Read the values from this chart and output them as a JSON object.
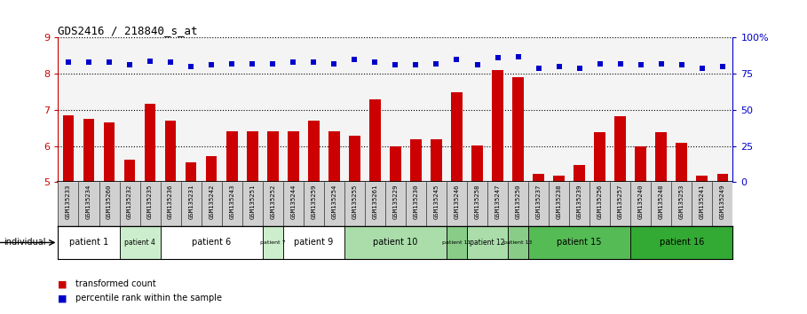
{
  "title": "GDS2416 / 218840_s_at",
  "samples": [
    "GSM135233",
    "GSM135234",
    "GSM135260",
    "GSM135232",
    "GSM135235",
    "GSM135236",
    "GSM135231",
    "GSM135242",
    "GSM135243",
    "GSM135251",
    "GSM135252",
    "GSM135244",
    "GSM135259",
    "GSM135254",
    "GSM135255",
    "GSM135261",
    "GSM135229",
    "GSM135230",
    "GSM135245",
    "GSM135246",
    "GSM135258",
    "GSM135247",
    "GSM135250",
    "GSM135237",
    "GSM135238",
    "GSM135239",
    "GSM135256",
    "GSM135257",
    "GSM135240",
    "GSM135248",
    "GSM135253",
    "GSM135241",
    "GSM135249"
  ],
  "bar_values": [
    6.85,
    6.75,
    6.65,
    5.62,
    7.18,
    6.7,
    5.55,
    5.72,
    6.42,
    6.42,
    6.42,
    6.42,
    6.7,
    6.42,
    6.28,
    7.3,
    5.98,
    6.18,
    6.18,
    7.5,
    6.02,
    8.1,
    7.9,
    5.22,
    5.18,
    5.48,
    6.38,
    6.82,
    6.0,
    6.38,
    6.08,
    5.18,
    5.22
  ],
  "percentile_values": [
    83,
    83,
    83,
    81,
    84,
    83,
    80,
    81,
    82,
    82,
    82,
    83,
    83,
    82,
    85,
    83,
    81,
    81,
    82,
    85,
    81,
    86,
    87,
    79,
    80,
    79,
    82,
    82,
    81,
    82,
    81,
    79,
    80
  ],
  "patient_groups": [
    {
      "label": "patient 1",
      "start": 0,
      "end": 2,
      "color": "#ffffff"
    },
    {
      "label": "patient 4",
      "start": 3,
      "end": 4,
      "color": "#cceecc"
    },
    {
      "label": "patient 6",
      "start": 5,
      "end": 9,
      "color": "#ffffff"
    },
    {
      "label": "patient 7",
      "start": 10,
      "end": 10,
      "color": "#cceecc"
    },
    {
      "label": "patient 9",
      "start": 11,
      "end": 13,
      "color": "#ffffff"
    },
    {
      "label": "patient 10",
      "start": 14,
      "end": 18,
      "color": "#aaddaa"
    },
    {
      "label": "patient 11",
      "start": 19,
      "end": 19,
      "color": "#88cc88"
    },
    {
      "label": "patient 12",
      "start": 20,
      "end": 21,
      "color": "#aaddaa"
    },
    {
      "label": "patient 13",
      "start": 22,
      "end": 22,
      "color": "#88cc88"
    },
    {
      "label": "patient 15",
      "start": 23,
      "end": 27,
      "color": "#55bb55"
    },
    {
      "label": "patient 16",
      "start": 28,
      "end": 32,
      "color": "#33aa33"
    }
  ],
  "ylim_left": [
    5,
    9
  ],
  "ylim_right": [
    0,
    100
  ],
  "yticks_left": [
    5,
    6,
    7,
    8,
    9
  ],
  "yticks_right": [
    0,
    25,
    50,
    75,
    100
  ],
  "bar_color": "#cc0000",
  "dot_color": "#0000cc",
  "bg_plot": "#e8e8e8",
  "bg_xtick": "#d0d0d0",
  "background_color": "#ffffff"
}
